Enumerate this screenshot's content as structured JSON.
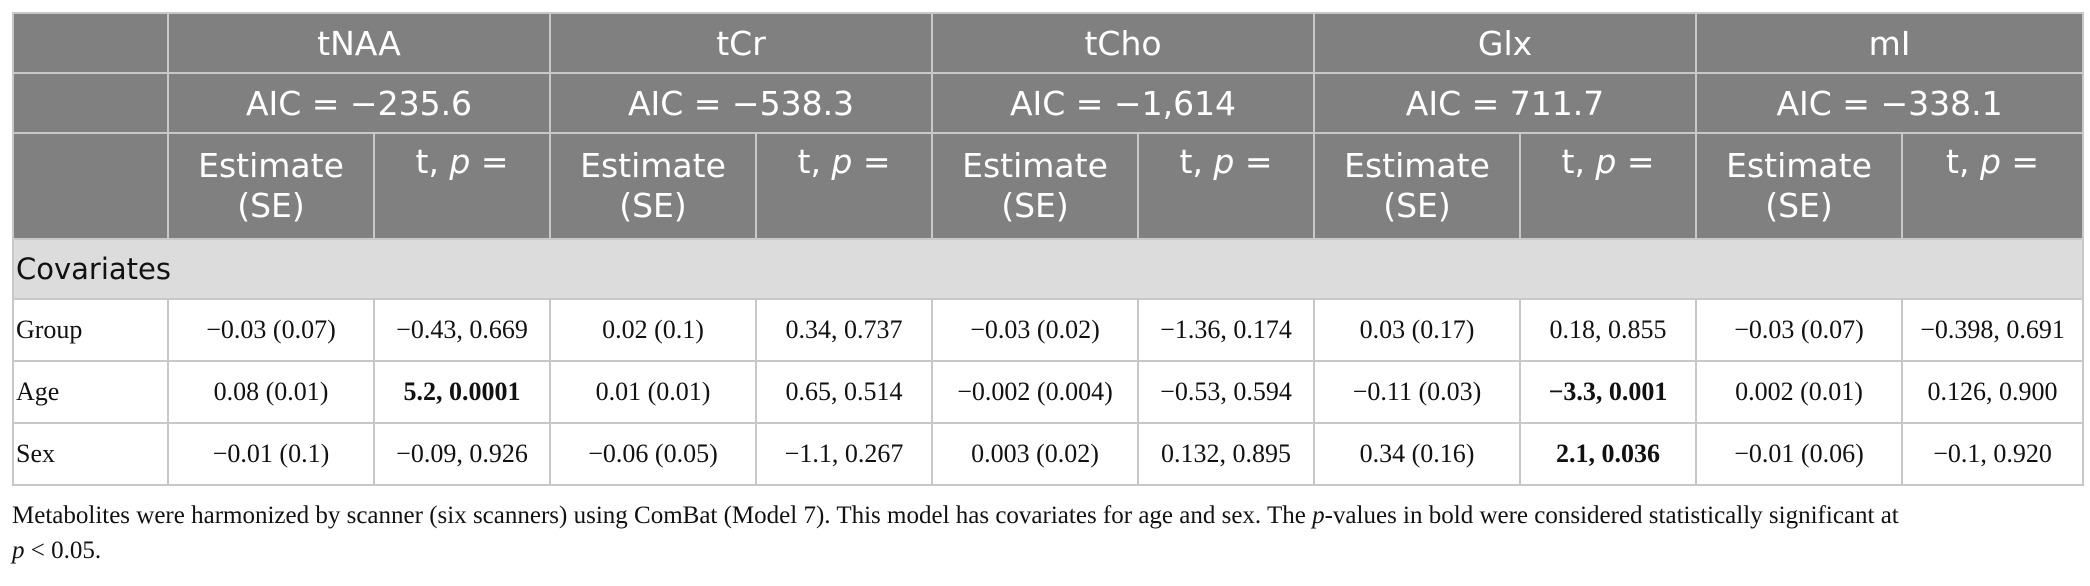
{
  "table": {
    "metabolites": [
      {
        "name": "tNAA",
        "aic": "AIC = −235.6"
      },
      {
        "name": "tCr",
        "aic": "AIC = −538.3"
      },
      {
        "name": "tCho",
        "aic": "AIC = −1,614"
      },
      {
        "name": "Glx",
        "aic": "AIC = 711.7"
      },
      {
        "name": "mI",
        "aic": "AIC = −338.1"
      }
    ],
    "subheaders": {
      "estimate_line1": "Estimate",
      "estimate_line2": "(SE)",
      "tp_prefix": "t, ",
      "tp_p": "p",
      "tp_suffix": " ="
    },
    "section_label": "Covariates",
    "rows": [
      {
        "label": "Group",
        "cells": [
          "−0.03 (0.07)",
          "−0.43, 0.669",
          "0.02 (0.1)",
          "0.34, 0.737",
          "−0.03 (0.02)",
          "−1.36, 0.174",
          "0.03 (0.17)",
          "0.18, 0.855",
          "−0.03 (0.07)",
          "−0.398, 0.691"
        ]
      },
      {
        "label": "Age",
        "cells": [
          "0.08 (0.01)",
          "5.2, 0.0001",
          "0.01 (0.01)",
          "0.65, 0.514",
          "−0.002 (0.004)",
          "−0.53, 0.594",
          "−0.11 (0.03)",
          "−3.3, 0.001",
          "0.002 (0.01)",
          "0.126, 0.900"
        ]
      },
      {
        "label": "Sex",
        "cells": [
          "−0.01 (0.1)",
          "−0.09, 0.926",
          "−0.06 (0.05)",
          "−1.1, 0.267",
          "0.003 (0.02)",
          "0.132, 0.895",
          "0.34 (0.16)",
          "2.1, 0.036",
          "−0.01 (0.06)",
          "−0.1, 0.920"
        ]
      }
    ]
  },
  "footnote": {
    "part1": "Metabolites were harmonized by scanner (six scanners) using ComBat (Model 7). This model has covariates for age and sex. The ",
    "p1": "p",
    "part2": "-values in bold were considered statistically significant at ",
    "p2": "p",
    "part3": " < 0.05."
  }
}
